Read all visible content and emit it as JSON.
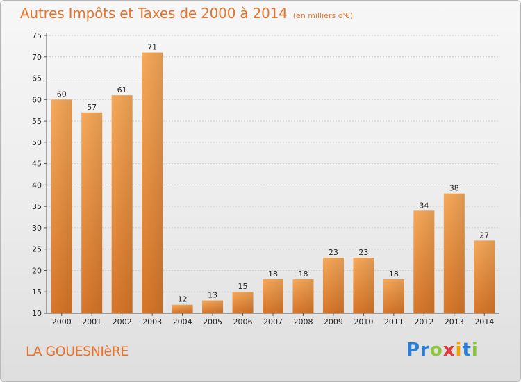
{
  "title": "Autres Impôts et Taxes de 2000 à 2014",
  "subtitle": "(en milliers d'€)",
  "commune": "LA GOUESNIèRE",
  "brand": {
    "letters": [
      "P",
      "r",
      "o",
      "x",
      "i",
      "t",
      "i"
    ],
    "colors": [
      "#2a7fd4",
      "#2a7fd4",
      "#8cc43c",
      "#e33b3b",
      "#f2a400",
      "#2a7fd4",
      "#8cc43c"
    ]
  },
  "colors": {
    "bar_light": "#f7a95a",
    "bar_dark": "#d8772a",
    "accent": "#e8732a"
  },
  "chart_data": {
    "type": "bar",
    "categories": [
      "2000",
      "2001",
      "2002",
      "2003",
      "2004",
      "2005",
      "2006",
      "2007",
      "2008",
      "2009",
      "2010",
      "2011",
      "2012",
      "2013",
      "2014"
    ],
    "values": [
      60,
      57,
      61,
      71,
      12,
      13,
      15,
      18,
      18,
      23,
      23,
      18,
      34,
      38,
      27
    ],
    "title": "Autres Impôts et Taxes de 2000 à 2014",
    "ylim": [
      10,
      75
    ],
    "yticks": [
      10,
      15,
      20,
      25,
      30,
      35,
      40,
      45,
      50,
      55,
      60,
      65,
      70,
      75
    ],
    "grid": true,
    "legend": "none"
  }
}
